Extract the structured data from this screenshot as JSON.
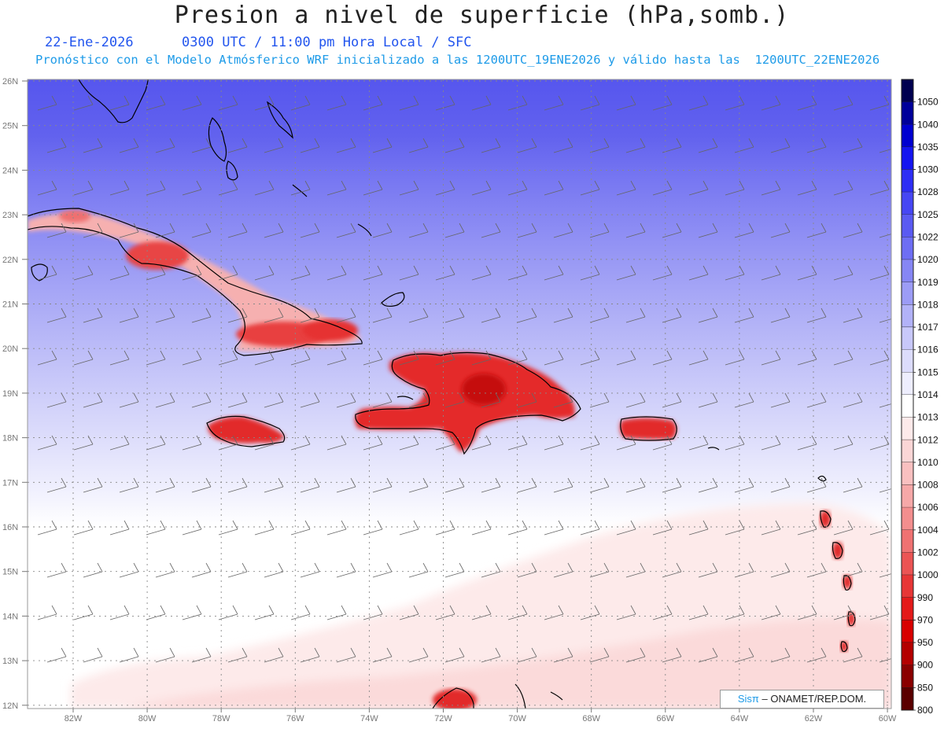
{
  "title": "Presion a nivel de superficie (hPa,somb.)",
  "subtitle_date": "22-Ene-2026",
  "subtitle_time": "0300 UTC / 11:00 pm Hora Local / SFC",
  "subtitle_model": "Pronóstico con el Modelo Atmósferico WRF inicializado a las 1200UTC_19ENE2026 y válido hasta las  1200UTC_22ENE2026",
  "lat_labels": [
    "26N",
    "25N",
    "24N",
    "23N",
    "22N",
    "21N",
    "20N",
    "19N",
    "18N",
    "17N",
    "16N",
    "15N",
    "14N",
    "13N",
    "12N"
  ],
  "lon_labels": [
    "82W",
    "80W",
    "78W",
    "76W",
    "74W",
    "72W",
    "70W",
    "68W",
    "66W",
    "64W",
    "62W",
    "60W"
  ],
  "colorbar": {
    "levels": [
      "1050",
      "1040",
      "1035",
      "1030",
      "1028",
      "1025",
      "1022",
      "1020",
      "1019",
      "1018",
      "1017",
      "1016",
      "1015",
      "1014",
      "1013",
      "1012",
      "1010",
      "1008",
      "1006",
      "1004",
      "1002",
      "1000",
      "990",
      "970",
      "950",
      "900",
      "850",
      "800"
    ],
    "colors": [
      "#000050",
      "#00009a",
      "#0000d0",
      "#1414f0",
      "#2d2df5",
      "#4646f4",
      "#5a5af2",
      "#6e6ef4",
      "#8686f4",
      "#9c9cf6",
      "#b2b2f8",
      "#c8c8fa",
      "#dcdcfc",
      "#eeeefe",
      "#ffffff",
      "#fdeaea",
      "#fbd6d6",
      "#f9c0c0",
      "#f6a8a8",
      "#f38e8e",
      "#ef7272",
      "#eb5454",
      "#e73636",
      "#e41a1a",
      "#d80000",
      "#b40000",
      "#8a0000",
      "#5a0000"
    ]
  },
  "credit_sis": "Sis",
  "credit_pi": "π",
  "credit_org": " – ONAMET/REP.DOM."
}
